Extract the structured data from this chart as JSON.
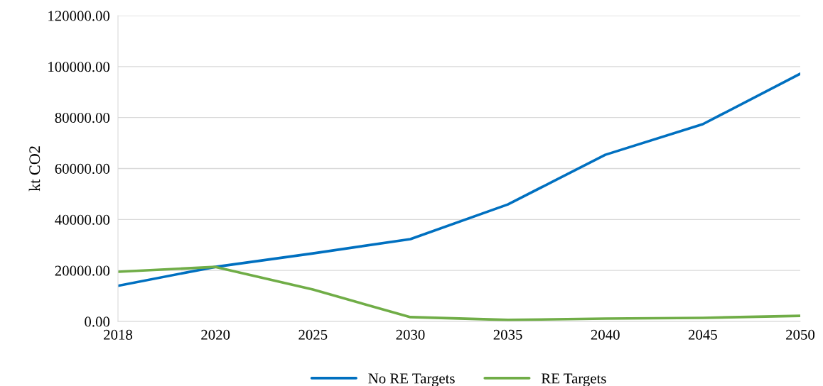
{
  "chart_data": {
    "type": "line",
    "ylabel": "kt CO2",
    "categories": [
      "2018",
      "2020",
      "2025",
      "2030",
      "2035",
      "2040",
      "2045",
      "2050"
    ],
    "series": [
      {
        "name": "No RE Targets",
        "color": "#0070c0",
        "values": [
          14000,
          21400,
          26700,
          32300,
          45900,
          65400,
          77400,
          97200
        ]
      },
      {
        "name": "RE Targets",
        "color": "#70ad47",
        "values": [
          19500,
          21400,
          12500,
          1700,
          600,
          1100,
          1400,
          2200
        ]
      }
    ],
    "ylim": [
      0,
      120000
    ],
    "yticks": [
      {
        "value": 0,
        "label": "0.00"
      },
      {
        "value": 20000,
        "label": "20000.00"
      },
      {
        "value": 40000,
        "label": "40000.00"
      },
      {
        "value": 60000,
        "label": "60000.00"
      },
      {
        "value": 80000,
        "label": "80000.00"
      },
      {
        "value": 100000,
        "label": "100000.00"
      },
      {
        "value": 120000,
        "label": "120000.00"
      }
    ],
    "grid": "y",
    "legend": "bottom",
    "marker": "none",
    "line_style": "solid"
  }
}
